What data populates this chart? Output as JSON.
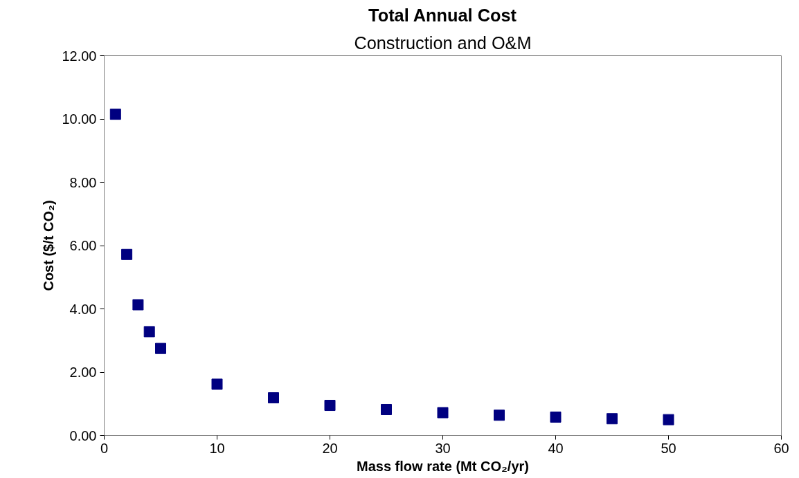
{
  "chart_data": {
    "type": "scatter",
    "title": "Total Annual Cost",
    "subtitle": "Construction and O&M",
    "xlabel": "Mass flow rate (Mt CO₂/yr)",
    "ylabel": "Cost ($/t CO₂)",
    "x": [
      1,
      2,
      3,
      4,
      5,
      10,
      15,
      20,
      25,
      30,
      35,
      40,
      45,
      50
    ],
    "series": [
      {
        "color": "#000080",
        "values": [
          10.15,
          5.72,
          4.13,
          3.28,
          2.75,
          1.62,
          1.19,
          0.95,
          0.82,
          0.72,
          0.64,
          0.58,
          0.53,
          0.5
        ]
      }
    ],
    "xlim": [
      0,
      60
    ],
    "xticks": [
      0,
      10,
      20,
      30,
      40,
      50,
      60
    ],
    "ylim": [
      0,
      12
    ],
    "yticks": [
      {
        "value": 0,
        "label": "0.00"
      },
      {
        "value": 2,
        "label": "2.00"
      },
      {
        "value": 4,
        "label": "4.00"
      },
      {
        "value": 6,
        "label": "6.00"
      },
      {
        "value": 8,
        "label": "8.00"
      },
      {
        "value": 10,
        "label": "10.00"
      },
      {
        "value": 12,
        "label": "12.00"
      }
    ],
    "grid": false,
    "marker": "square"
  }
}
